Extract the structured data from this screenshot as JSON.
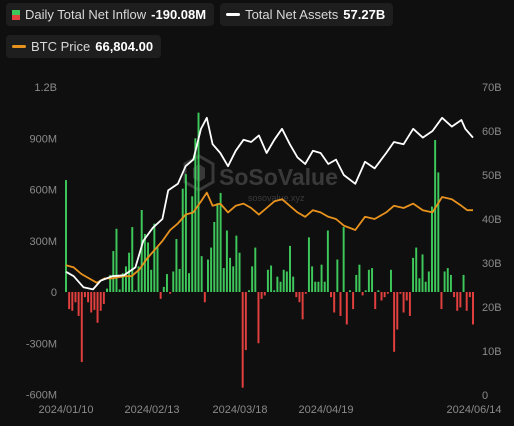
{
  "legend": {
    "inflow": {
      "label": "Daily Total Net Inflow",
      "value": "-190.08M"
    },
    "assets": {
      "label": "Total Net Assets",
      "value": "57.27B"
    },
    "btc": {
      "label": "BTC Price",
      "value": "66,804.00"
    }
  },
  "watermark": "SoSoValue",
  "watermark_sub": "sosovalue.xyz",
  "colors": {
    "positive": "#3ec75a",
    "negative": "#e2403e",
    "assets_line": "#ffffff",
    "btc_line": "#e8921e",
    "axis_text": "#8a8a8a",
    "grid": "#262626"
  },
  "chart_data": {
    "type": "bar",
    "title": "",
    "x_ticks": [
      "2024/01/10",
      "2024/02/13",
      "2024/03/18",
      "2024/04/19",
      "2024/06/14"
    ],
    "left_axis": {
      "ticks": [
        "1.2B",
        "900M",
        "600M",
        "300M",
        "0",
        "-300M",
        "-600M"
      ],
      "range": [
        -600,
        1200
      ],
      "unit": "M"
    },
    "right_axis": {
      "ticks": [
        "70B",
        "60B",
        "50B",
        "40B",
        "30B",
        "20B",
        "10B",
        "0"
      ],
      "range": [
        0,
        70
      ],
      "unit": "B"
    },
    "legend_position": "top",
    "grid": false,
    "series": [
      {
        "name": "Daily Total Net Inflow",
        "type": "bar",
        "axis": "left",
        "values": [
          655,
          -100,
          -110,
          -60,
          -140,
          -410,
          -30,
          -60,
          -120,
          -105,
          -180,
          -110,
          -70,
          20,
          100,
          240,
          370,
          15,
          110,
          150,
          230,
          380,
          10,
          150,
          480,
          340,
          290,
          130,
          400,
          265,
          -40,
          30,
          105,
          -10,
          120,
          310,
          135,
          605,
          690,
          110,
          560,
          900,
          1050,
          210,
          -60,
          190,
          260,
          410,
          520,
          580,
          140,
          360,
          200,
          150,
          330,
          230,
          -560,
          -340,
          10,
          150,
          260,
          -300,
          -40,
          -20,
          130,
          155,
          10,
          90,
          60,
          130,
          120,
          270,
          90,
          -30,
          -60,
          -160,
          -10,
          320,
          150,
          60,
          60,
          160,
          60,
          360,
          -30,
          -120,
          190,
          -140,
          380,
          -190,
          10,
          -100,
          100,
          160,
          -20,
          10,
          130,
          140,
          -100,
          10,
          -50,
          -30,
          -10,
          130,
          -350,
          -220,
          -10,
          -120,
          -50,
          -140,
          200,
          260,
          80,
          220,
          60,
          120,
          500,
          890,
          700,
          -100,
          120,
          140,
          100,
          -30,
          -110,
          -90,
          100,
          -110,
          -30,
          -190
        ]
      },
      {
        "name": "Total Net Assets",
        "type": "line",
        "axis": "right",
        "values": [
          [
            0,
            28.0
          ],
          [
            4,
            27.0
          ],
          [
            9,
            24.5
          ],
          [
            14,
            24.0
          ],
          [
            18,
            26.0
          ],
          [
            24,
            27.0
          ],
          [
            30,
            27.2
          ],
          [
            36,
            29.0
          ],
          [
            40,
            35.0
          ],
          [
            45,
            38.0
          ],
          [
            50,
            40.0
          ],
          [
            53,
            46.5
          ],
          [
            58,
            48.0
          ],
          [
            62,
            52.0
          ],
          [
            66,
            53.5
          ],
          [
            70,
            60.5
          ],
          [
            73,
            63.0
          ],
          [
            76,
            57.0
          ],
          [
            80,
            55.0
          ],
          [
            84,
            52.0
          ],
          [
            88,
            55.5
          ],
          [
            92,
            58.0
          ],
          [
            96,
            57.5
          ],
          [
            100,
            59.0
          ],
          [
            104,
            55.0
          ],
          [
            108,
            58.0
          ],
          [
            112,
            60.5
          ],
          [
            116,
            57.0
          ],
          [
            120,
            54.0
          ],
          [
            124,
            52.5
          ],
          [
            128,
            55.5
          ],
          [
            132,
            55.0
          ],
          [
            136,
            52.5
          ],
          [
            140,
            53.5
          ],
          [
            144,
            50.0
          ],
          [
            150,
            48.0
          ],
          [
            155,
            53.0
          ],
          [
            160,
            51.5
          ],
          [
            166,
            55.0
          ],
          [
            170,
            57.5
          ],
          [
            175,
            57.0
          ],
          [
            180,
            60.5
          ],
          [
            185,
            58.5
          ],
          [
            190,
            60.0
          ],
          [
            195,
            63.0
          ],
          [
            200,
            61.0
          ],
          [
            205,
            62.5
          ],
          [
            207,
            60.5
          ],
          [
            211,
            58.5
          ]
        ]
      },
      {
        "name": "BTC Price",
        "type": "line",
        "axis": "right",
        "values": [
          [
            0,
            29.5
          ],
          [
            4,
            29.0
          ],
          [
            8,
            27.5
          ],
          [
            12,
            26.5
          ],
          [
            16,
            25.5
          ],
          [
            20,
            26.5
          ],
          [
            24,
            26.5
          ],
          [
            30,
            27.0
          ],
          [
            34,
            27.0
          ],
          [
            38,
            28.5
          ],
          [
            42,
            31.0
          ],
          [
            46,
            33.0
          ],
          [
            50,
            35.0
          ],
          [
            54,
            37.5
          ],
          [
            58,
            39.0
          ],
          [
            62,
            41.0
          ],
          [
            66,
            41.5
          ],
          [
            70,
            44.0
          ],
          [
            73,
            46.0
          ],
          [
            76,
            43.0
          ],
          [
            80,
            43.5
          ],
          [
            84,
            41.5
          ],
          [
            88,
            43.0
          ],
          [
            92,
            43.5
          ],
          [
            96,
            42.5
          ],
          [
            100,
            41.0
          ],
          [
            104,
            42.5
          ],
          [
            108,
            44.0
          ],
          [
            112,
            44.5
          ],
          [
            116,
            43.0
          ],
          [
            120,
            41.5
          ],
          [
            124,
            40.5
          ],
          [
            128,
            42.0
          ],
          [
            132,
            41.5
          ],
          [
            136,
            40.5
          ],
          [
            140,
            40.0
          ],
          [
            144,
            38.5
          ],
          [
            150,
            37.5
          ],
          [
            155,
            40.5
          ],
          [
            160,
            40.0
          ],
          [
            166,
            41.5
          ],
          [
            170,
            43.0
          ],
          [
            175,
            42.5
          ],
          [
            180,
            43.5
          ],
          [
            185,
            42.0
          ],
          [
            190,
            41.5
          ],
          [
            195,
            45.0
          ],
          [
            200,
            44.5
          ],
          [
            205,
            43.0
          ],
          [
            208,
            42.0
          ],
          [
            211,
            42.0
          ]
        ]
      }
    ]
  }
}
